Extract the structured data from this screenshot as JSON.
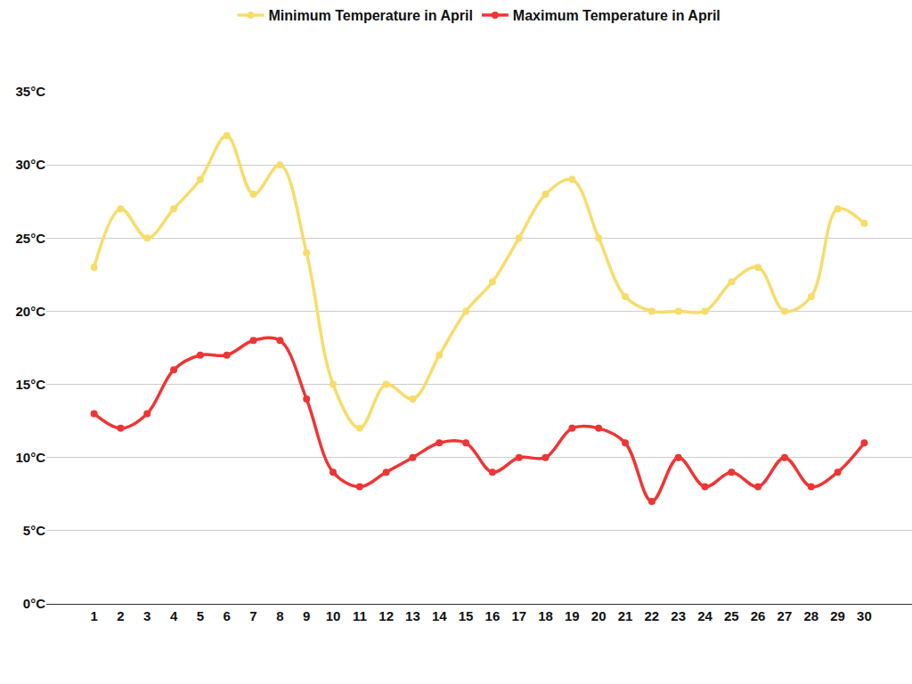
{
  "chart_data": {
    "type": "line",
    "categories": [
      "1",
      "2",
      "3",
      "4",
      "5",
      "6",
      "7",
      "8",
      "9",
      "10",
      "11",
      "12",
      "13",
      "14",
      "15",
      "16",
      "17",
      "18",
      "19",
      "20",
      "21",
      "22",
      "23",
      "24",
      "25",
      "26",
      "27",
      "28",
      "29",
      "30"
    ],
    "series": [
      {
        "name": "Minimum Temperature in April",
        "color": "#f8dc6a",
        "values": [
          23,
          27,
          25,
          27,
          29,
          32,
          28,
          30,
          24,
          15,
          12,
          15,
          14,
          17,
          20,
          22,
          25,
          28,
          29,
          25,
          21,
          20,
          20,
          20,
          22,
          23,
          20,
          21,
          27,
          26
        ]
      },
      {
        "name": "Maximum Temperature in April",
        "color": "#ee3535",
        "values": [
          13,
          12,
          13,
          16,
          17,
          17,
          18,
          18,
          14,
          9,
          8,
          9,
          10,
          11,
          11,
          9,
          10,
          10,
          12,
          12,
          11,
          7,
          10,
          8,
          9,
          8,
          10,
          8,
          9,
          11
        ]
      }
    ],
    "ylim": [
      0,
      35
    ],
    "yticks": [
      {
        "value": 0,
        "label": "0°C"
      },
      {
        "value": 5,
        "label": "5°C"
      },
      {
        "value": 10,
        "label": "10°C"
      },
      {
        "value": 15,
        "label": "15°C"
      },
      {
        "value": 20,
        "label": "20°C"
      },
      {
        "value": 25,
        "label": "25°C"
      },
      {
        "value": 30,
        "label": "30°C"
      },
      {
        "value": 35,
        "label": "35°C"
      }
    ],
    "grid": true,
    "legend": "top",
    "marker": "circle",
    "line_style": "smooth"
  }
}
